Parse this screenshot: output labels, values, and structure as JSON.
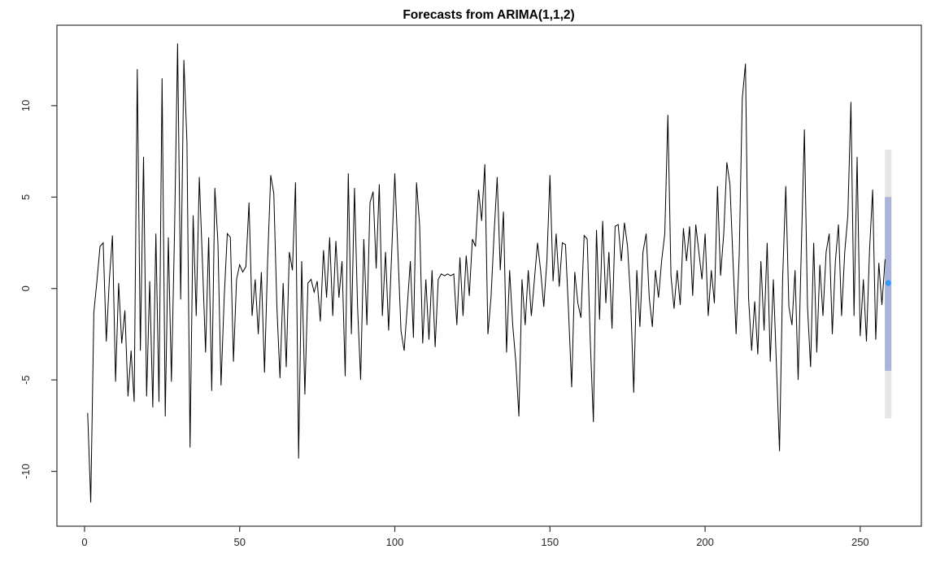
{
  "title": "Forecasts from ARIMA(1,1,2)",
  "colors": {
    "background": "#ffffff",
    "series_line": "#000000",
    "plot_border": "#333333",
    "axis_text": "#262626",
    "title_text": "#000000",
    "forecast_point": "#3399ff",
    "band_80": "#aab4d8",
    "band_95": "#e6e6e6"
  },
  "chart_data": {
    "type": "line",
    "title": "Forecasts from ARIMA(1,1,2)",
    "xlabel": "",
    "ylabel": "",
    "xlim": [
      -8.9,
      269.7
    ],
    "ylim": [
      -13.0,
      14.4
    ],
    "x_ticks": [
      0,
      50,
      100,
      150,
      200,
      250
    ],
    "y_ticks": [
      -10,
      -5,
      0,
      5,
      10
    ],
    "grid": false,
    "legend": false,
    "x_start": 1,
    "values": [
      -6.8,
      -11.7,
      -1.3,
      0.4,
      2.3,
      2.5,
      -2.9,
      0.5,
      2.9,
      -5.1,
      0.3,
      -3.0,
      -1.2,
      -5.9,
      -3.4,
      -6.2,
      12.0,
      -3.4,
      7.2,
      -5.9,
      0.4,
      -6.5,
      3.0,
      -6.2,
      11.5,
      -7.0,
      2.8,
      -5.1,
      3.0,
      13.4,
      -0.6,
      12.5,
      8.0,
      -8.7,
      4.0,
      -1.5,
      6.1,
      1.5,
      -3.5,
      2.8,
      -5.6,
      5.5,
      2.5,
      -5.3,
      -0.5,
      3.0,
      2.8,
      -4.0,
      0.5,
      1.3,
      0.9,
      1.2,
      4.7,
      -1.5,
      0.5,
      -2.5,
      0.9,
      -4.6,
      1.5,
      6.2,
      5.2,
      -1.0,
      -4.9,
      0.3,
      -4.3,
      2.0,
      1.0,
      5.8,
      -9.3,
      1.5,
      -5.8,
      0.3,
      0.5,
      -0.2,
      0.4,
      -1.8,
      2.1,
      -0.5,
      2.8,
      -1.5,
      2.6,
      -0.5,
      1.5,
      -4.8,
      6.3,
      -2.5,
      5.5,
      -1.0,
      -5.0,
      2.7,
      -2.0,
      4.7,
      5.3,
      1.1,
      5.7,
      -1.5,
      2.0,
      -2.3,
      2.0,
      6.3,
      2.0,
      -2.3,
      -3.4,
      -1.0,
      1.5,
      -2.7,
      5.8,
      3.5,
      -3.0,
      0.5,
      -2.8,
      1.0,
      -3.2,
      0.5,
      0.8,
      0.7,
      0.8,
      0.7,
      0.8,
      -2.0,
      1.7,
      -1.5,
      1.8,
      -0.4,
      2.7,
      2.3,
      5.4,
      3.7,
      6.8,
      -2.5,
      -0.5,
      3.0,
      6.1,
      1.0,
      4.2,
      -3.5,
      1.0,
      -2.0,
      -4.0,
      -7.0,
      0.5,
      -2.0,
      1.0,
      -1.5,
      0.5,
      2.5,
      1.0,
      -1.0,
      1.5,
      6.2,
      0.4,
      3.0,
      0.1,
      2.5,
      2.4,
      -1.3,
      -5.4,
      0.9,
      -0.8,
      -1.6,
      2.9,
      2.7,
      -2.9,
      -7.3,
      3.2,
      -1.7,
      3.7,
      -0.8,
      2.0,
      -2.2,
      3.4,
      3.5,
      1.5,
      3.6,
      2.3,
      -0.6,
      -5.7,
      1.0,
      -2.1,
      2.0,
      3.0,
      -0.5,
      -2.1,
      1.0,
      -0.5,
      1.5,
      3.0,
      9.5,
      0.7,
      -1.1,
      1.0,
      -0.9,
      3.3,
      1.5,
      3.4,
      -0.4,
      3.5,
      2.0,
      0.5,
      3.0,
      -1.5,
      1.0,
      -0.8,
      5.6,
      0.7,
      3.0,
      6.9,
      5.7,
      1.5,
      -2.5,
      1.8,
      10.4,
      12.3,
      -0.5,
      -3.4,
      -0.7,
      -3.6,
      1.5,
      -2.3,
      2.5,
      -4.0,
      0.5,
      -4.2,
      -8.9,
      0.5,
      5.6,
      -1.0,
      -2.0,
      1.0,
      -5.0,
      2.0,
      8.7,
      -1.0,
      -4.3,
      2.5,
      -3.5,
      1.3,
      -1.5,
      2.0,
      3.0,
      -2.5,
      1.5,
      3.5,
      -1.5,
      2.0,
      4.0,
      10.2,
      -1.5,
      7.2,
      -2.6,
      0.5,
      -2.9,
      2.1,
      5.4,
      -2.8,
      1.4,
      -0.9,
      1.6
    ],
    "forecast": {
      "x": 259,
      "mean": 0.3,
      "interval_80": [
        -4.5,
        5.0
      ],
      "interval_95": [
        -7.1,
        7.6
      ]
    }
  }
}
